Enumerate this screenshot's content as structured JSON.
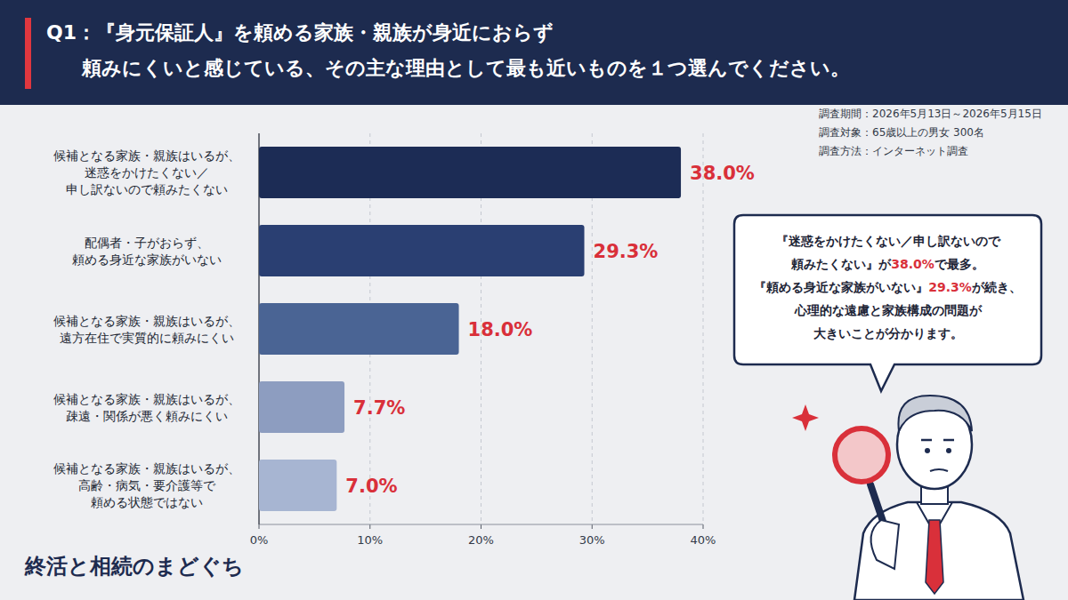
{
  "chart_data": {
    "type": "bar",
    "orientation": "horizontal",
    "title": "Q1：『身元保証人』を頼める家族・親族が身近におらず\n頼みにくいと感じている、その主な理由として最も近いものを１つ選んでください。",
    "categories": [
      "候補となる家族・親族はいるが、\n迷惑をかけたくない／\n申し訳ないので頼みたくない",
      "配偶者・子がおらず、\n頼める身近な家族がいない",
      "候補となる家族・親族はいるが、\n遠方在住で実質的に頼みにくい",
      "候補となる家族・親族はいるが、\n疎遠・関係が悪く頼みにくい",
      "候補となる家族・親族はいるが、\n高齢・病気・要介護等で\n頼める状態ではない"
    ],
    "values": [
      38.0,
      29.3,
      18.0,
      7.7,
      7.0
    ],
    "value_labels": [
      "38.0%",
      "29.3%",
      "18.0%",
      "7.7%",
      "7.0%"
    ],
    "colors": [
      "#1c2c55",
      "#2a3f72",
      "#4a6494",
      "#8d9dc0",
      "#a7b5d2"
    ],
    "xlim": [
      0,
      40
    ],
    "xticks": [
      {
        "value": 0,
        "label": "0%"
      },
      {
        "value": 10,
        "label": "10%"
      },
      {
        "value": 20,
        "label": "20%"
      },
      {
        "value": 30,
        "label": "30%"
      },
      {
        "value": 40,
        "label": "40%"
      }
    ],
    "grid": true,
    "data_labels": true
  },
  "survey": [
    "調査期間：2026年5月13日～2026年5月15日",
    "調査対象：65歳以上の男女 300名",
    "調査方法：インターネット調査"
  ],
  "callout": [
    "『迷惑をかけたくない／申し訳ないので",
    "頼みたくない』が38.0%で最多。",
    "『頼める身近な家族がいない』29.3%が続き、",
    "心理的な遠慮と家族構成の問題が",
    "大きいことが分かります。"
  ],
  "brand": "終活と相続のまどぐち"
}
